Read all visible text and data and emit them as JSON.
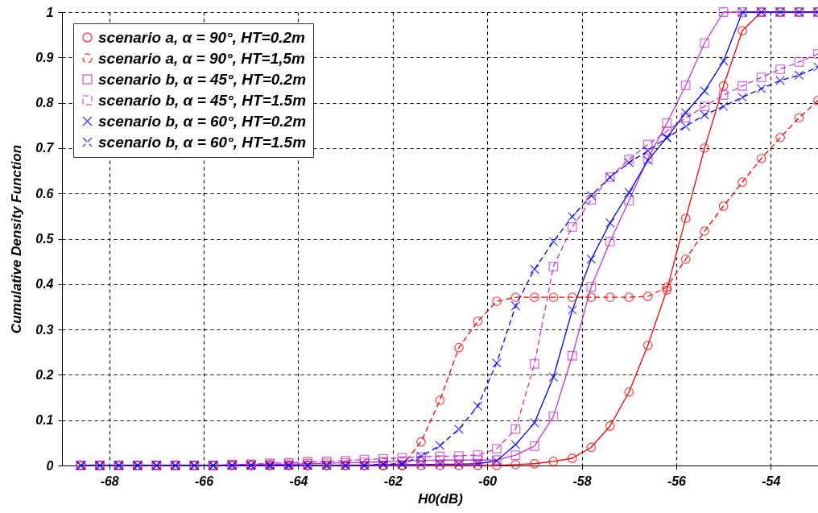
{
  "chart_data": {
    "type": "line",
    "xlabel": "H0(dB)",
    "ylabel": "Cumulative Density Function",
    "legend": "top left",
    "grid": true,
    "x": [
      -68.6,
      -68.2,
      -67.8,
      -67.4,
      -67,
      -66.6,
      -66.2,
      -65.8,
      -65.4,
      -65,
      -64.6,
      -64.2,
      -63.8,
      -63.4,
      -63,
      -62.6,
      -62.2,
      -61.8,
      -61.4,
      -61,
      -60.6,
      -60.2,
      -59.8,
      -59.4,
      -59,
      -58.6,
      -58.2,
      -57.8,
      -57.4,
      -57,
      -56.6,
      -56.2,
      -55.8,
      -55.4,
      -55,
      -54.6,
      -54.2,
      -53.8,
      -53.4,
      -53
    ],
    "xlim": [
      -69,
      -53
    ],
    "xticks": [
      -68,
      -66,
      -64,
      -62,
      -60,
      -58,
      -56,
      -54
    ],
    "ylim": [
      0,
      1
    ],
    "yticks": [
      0,
      0.1,
      0.2,
      0.3,
      0.4,
      0.5,
      0.6,
      0.7,
      0.8,
      0.9,
      1
    ],
    "series": [
      {
        "name": "scenario a, α = 90°, HT=0.2m",
        "color": "#ff0000",
        "marker": "circle",
        "line_style": "solid",
        "values": [
          0,
          0,
          0,
          0,
          0,
          0,
          0,
          0,
          0,
          0,
          0,
          0,
          0,
          0,
          0,
          0,
          0,
          0,
          0,
          0,
          0,
          0,
          0,
          0.002,
          0.004,
          0.009,
          0.016,
          0.04,
          0.087,
          0.162,
          0.265,
          0.387,
          0.545,
          0.7,
          0.837,
          0.959,
          1,
          1,
          1,
          1
        ]
      },
      {
        "name": "scenario a, α = 90°, HT=1,5m",
        "color": "#ff0000",
        "marker": "circle",
        "line_style": "dashed",
        "values": [
          0,
          0,
          0,
          0,
          0,
          0,
          0,
          0,
          0,
          0,
          0,
          0,
          0,
          0,
          0,
          0,
          0,
          0,
          0.052,
          0.144,
          0.26,
          0.318,
          0.362,
          0.371,
          0.371,
          0.371,
          0.371,
          0.371,
          0.371,
          0.371,
          0.373,
          0.393,
          0.455,
          0.517,
          0.572,
          0.625,
          0.677,
          0.723,
          0.767,
          0.805
        ]
      },
      {
        "name": "scenario b, α = 45°, HT=0.2m",
        "color": "#cc33cc",
        "marker": "square",
        "line_style": "solid",
        "values": [
          0,
          0,
          0,
          0,
          0,
          0,
          0,
          0,
          0.002,
          0.002,
          0.003,
          0.003,
          0.004,
          0.005,
          0.006,
          0.007,
          0.008,
          0.01,
          0.011,
          0.012,
          0.012,
          0.012,
          0.012,
          0.023,
          0.043,
          0.108,
          0.242,
          0.394,
          0.494,
          0.584,
          0.677,
          0.755,
          0.838,
          0.932,
          1,
          1,
          1,
          1,
          1,
          1
        ]
      },
      {
        "name": "scenario b, α = 45°, HT=1.5m",
        "color": "#cc33cc",
        "marker": "square",
        "line_style": "dashed",
        "values": [
          0,
          0,
          0,
          0,
          0,
          0,
          0,
          0,
          0.002,
          0.003,
          0.005,
          0.006,
          0.008,
          0.009,
          0.011,
          0.013,
          0.015,
          0.017,
          0.019,
          0.02,
          0.021,
          0.023,
          0.037,
          0.08,
          0.224,
          0.439,
          0.526,
          0.586,
          0.636,
          0.675,
          0.708,
          0.737,
          0.767,
          0.792,
          0.817,
          0.837,
          0.856,
          0.874,
          0.89,
          0.908
        ]
      },
      {
        "name": "scenario b, α = 60°, HT=0.2m",
        "color": "#0000ff",
        "marker": "cross",
        "line_style": "solid",
        "values": [
          0,
          0,
          0,
          0,
          0,
          0,
          0,
          0,
          0,
          0,
          0,
          0,
          0,
          0,
          0,
          0,
          0.002,
          0.002,
          0.002,
          0.003,
          0.003,
          0.004,
          0.01,
          0.046,
          0.094,
          0.195,
          0.343,
          0.455,
          0.535,
          0.602,
          0.673,
          0.723,
          0.778,
          0.826,
          0.892,
          1,
          1,
          1,
          1,
          1
        ]
      },
      {
        "name": "scenario b, α = 60°, HT=1.5m",
        "color": "#0000ff",
        "marker": "cross",
        "line_style": "dashed",
        "values": [
          0,
          0,
          0,
          0,
          0,
          0,
          0,
          0,
          0,
          0,
          0,
          0,
          0,
          0,
          0,
          0,
          0.003,
          0.004,
          0.02,
          0.044,
          0.08,
          0.131,
          0.226,
          0.352,
          0.433,
          0.494,
          0.549,
          0.595,
          0.636,
          0.668,
          0.694,
          0.723,
          0.748,
          0.773,
          0.792,
          0.812,
          0.831,
          0.849,
          0.861,
          0.879
        ]
      }
    ]
  }
}
